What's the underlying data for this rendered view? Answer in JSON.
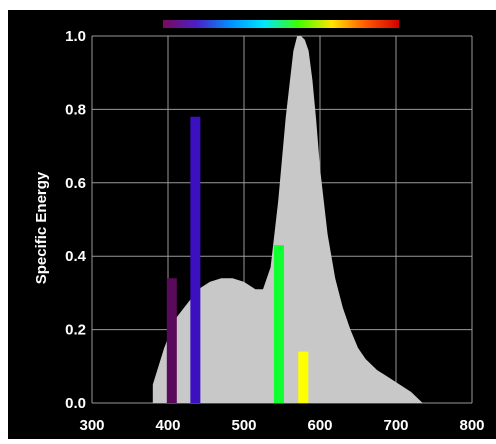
{
  "chart_data": {
    "type": "area",
    "title": "",
    "xlabel": "",
    "ylabel": "Specific Energy",
    "xlim": [
      300,
      800
    ],
    "ylim": [
      0.0,
      1.0
    ],
    "x_ticks": [
      "300",
      "400",
      "500",
      "600",
      "700",
      "800"
    ],
    "y_ticks": [
      "0.0",
      "0.2",
      "0.4",
      "0.6",
      "0.8",
      "1.0"
    ],
    "grid": true,
    "spectrum_bar": {
      "x_range": [
        400,
        700
      ],
      "colors": [
        "#7a0a5a",
        "#4b1fc8",
        "#0090ff",
        "#00e6ff",
        "#3cff00",
        "#ffe600",
        "#ff5a00",
        "#d40000"
      ]
    },
    "series": [
      {
        "kind": "area",
        "color": "#c8c8c8",
        "x": [
          380,
          395,
          410,
          425,
          440,
          455,
          470,
          485,
          500,
          515,
          525,
          535,
          545,
          555,
          565,
          570,
          575,
          580,
          585,
          590,
          595,
          600,
          610,
          620,
          630,
          640,
          650,
          660,
          675,
          690,
          705,
          720,
          735
        ],
        "y": [
          0.05,
          0.15,
          0.23,
          0.27,
          0.31,
          0.33,
          0.34,
          0.34,
          0.33,
          0.31,
          0.31,
          0.37,
          0.55,
          0.78,
          0.96,
          1.0,
          1.0,
          0.99,
          0.96,
          0.88,
          0.77,
          0.64,
          0.46,
          0.34,
          0.26,
          0.2,
          0.15,
          0.12,
          0.09,
          0.07,
          0.05,
          0.03,
          0.0
        ]
      },
      {
        "kind": "bar",
        "x": [
          405,
          436,
          546,
          578
        ],
        "values": [
          0.34,
          0.78,
          0.43,
          0.14
        ],
        "colors": [
          "#5a0a5a",
          "#3b10c0",
          "#10ff30",
          "#ffff00"
        ]
      }
    ]
  }
}
